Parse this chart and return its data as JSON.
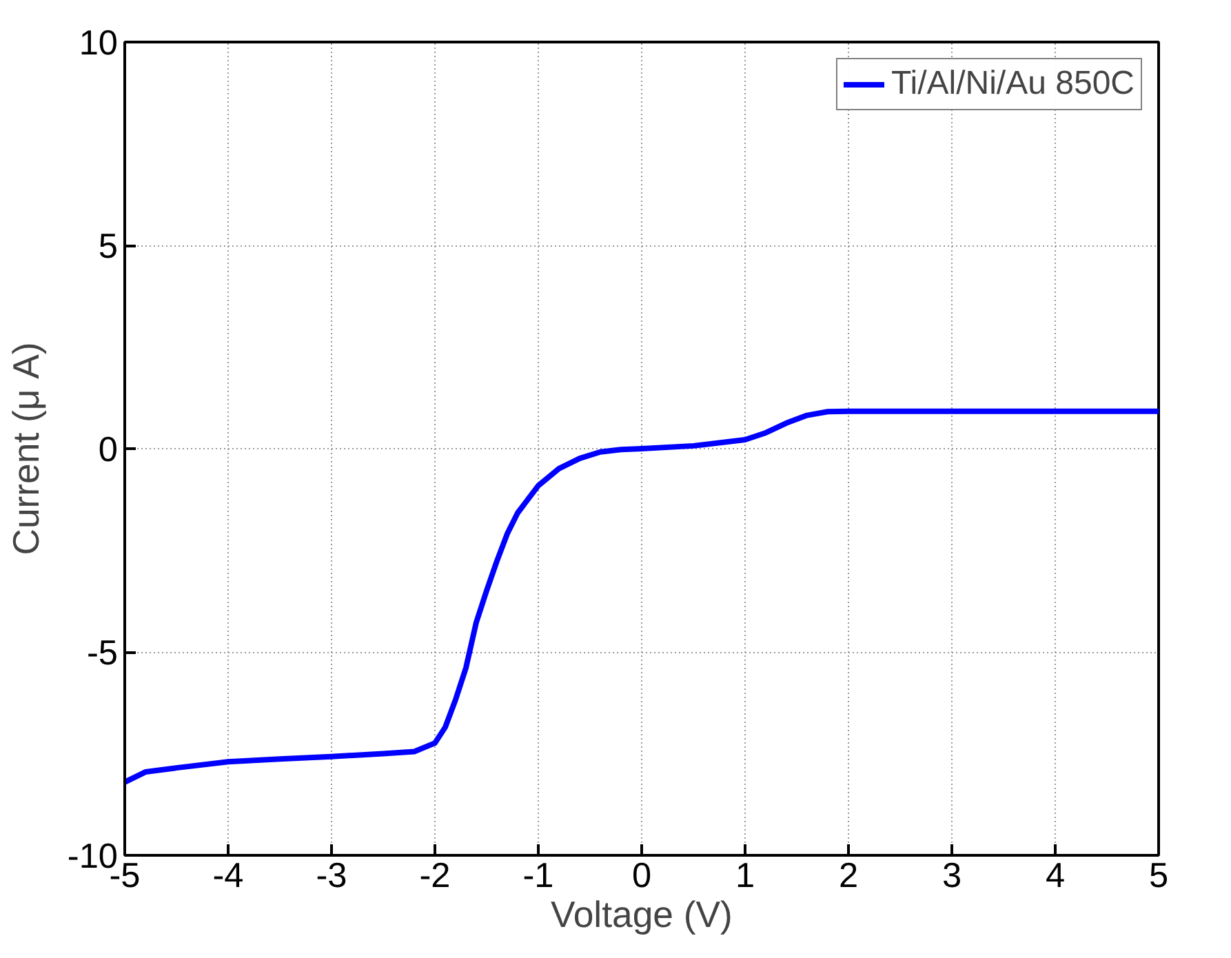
{
  "chart_data": {
    "type": "line",
    "xlabel": "Voltage (V)",
    "ylabel": "Current (μ A)",
    "xlim": [
      -5,
      5
    ],
    "ylim": [
      -10,
      10
    ],
    "xticks": [
      -5,
      -4,
      -3,
      -2,
      -1,
      0,
      1,
      2,
      3,
      4,
      5
    ],
    "yticks": [
      -10,
      -5,
      0,
      5,
      10
    ],
    "grid": true,
    "legend": "top right",
    "line_style": "solid",
    "x": [
      -5,
      -4.8,
      -4.5,
      -4,
      -3.5,
      -3,
      -2.5,
      -2.2,
      -2,
      -1.9,
      -1.8,
      -1.7,
      -1.6,
      -1.5,
      -1.4,
      -1.3,
      -1.2,
      -1.0,
      -0.8,
      -0.6,
      -0.4,
      -0.2,
      0,
      0.5,
      1,
      1.2,
      1.4,
      1.6,
      1.8,
      2,
      3,
      4,
      5
    ],
    "series": [
      {
        "name": "Ti/Al/Ni/Au 850C",
        "color": "#0000ff",
        "values": [
          -8.2,
          -7.95,
          -7.85,
          -7.7,
          -7.63,
          -7.57,
          -7.5,
          -7.45,
          -7.24,
          -6.85,
          -6.17,
          -5.39,
          -4.27,
          -3.49,
          -2.76,
          -2.09,
          -1.58,
          -0.91,
          -0.49,
          -0.24,
          -0.08,
          -0.02,
          0,
          0.07,
          0.22,
          0.39,
          0.63,
          0.82,
          0.91,
          0.92,
          0.92,
          0.92,
          0.92
        ]
      }
    ]
  }
}
